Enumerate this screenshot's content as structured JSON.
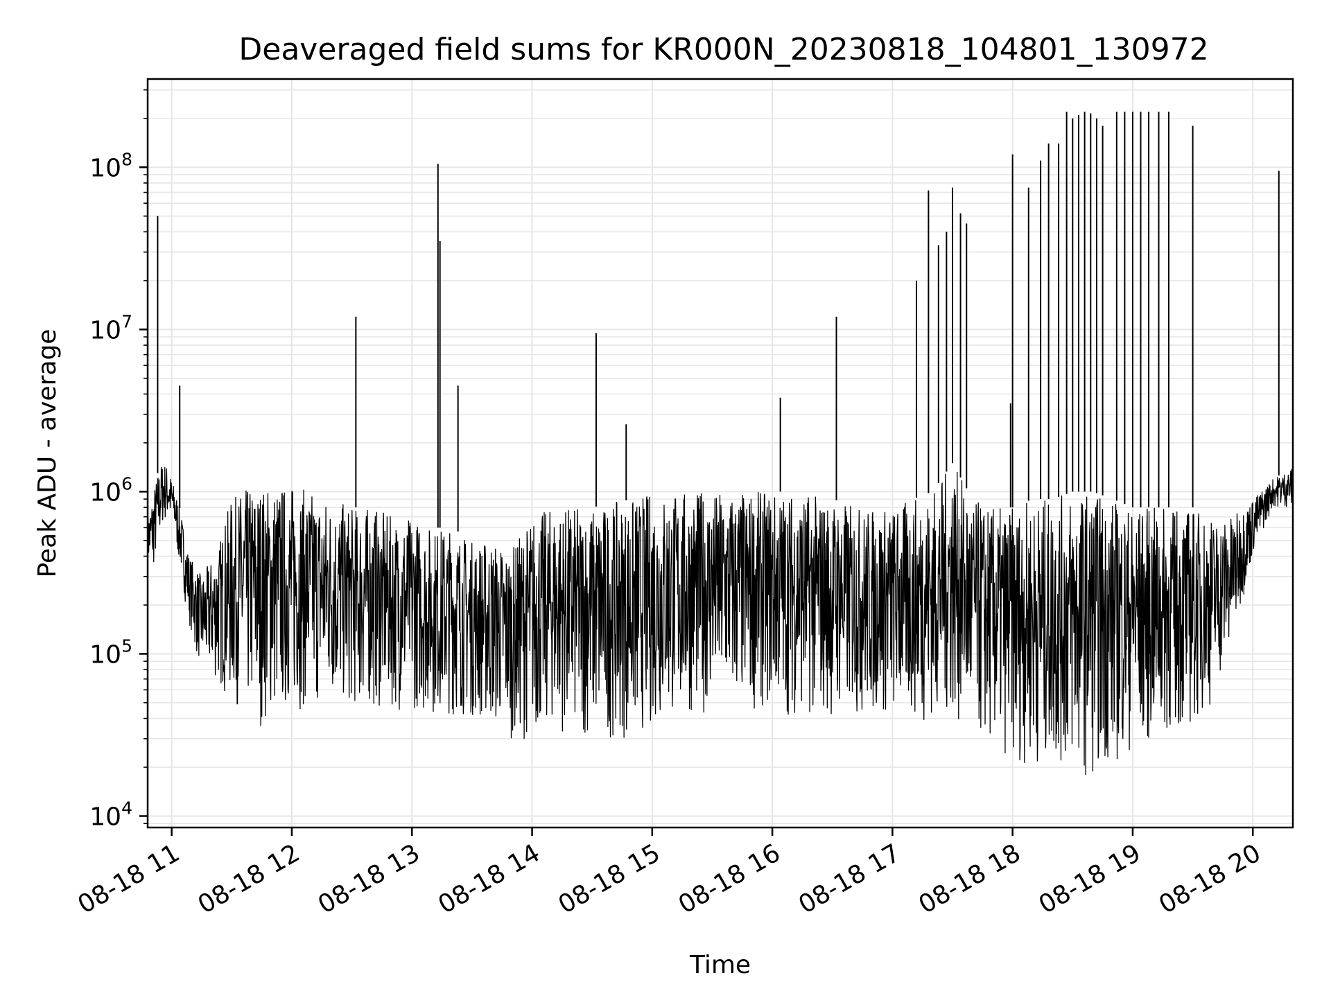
{
  "chart_data": {
    "type": "line",
    "title": "Deaveraged field sums for KR000N_20230818_104801_130972",
    "xlabel": "Time",
    "ylabel": "Peak ADU - average",
    "yscale": "log",
    "ylim": [
      8500,
      350000000
    ],
    "xlim": [
      "2023-08-18 10:48",
      "2023-08-18 20:20"
    ],
    "xtick_labels": [
      "08-18 11",
      "08-18 12",
      "08-18 13",
      "08-18 14",
      "08-18 15",
      "08-18 16",
      "08-18 17",
      "08-18 18",
      "08-18 19",
      "08-18 20"
    ],
    "ytick_labels": [
      {
        "base": "10",
        "exp": "4"
      },
      {
        "base": "10",
        "exp": "5"
      },
      {
        "base": "10",
        "exp": "6"
      },
      {
        "base": "10",
        "exp": "7"
      },
      {
        "base": "10",
        "exp": "8"
      }
    ],
    "grid": true,
    "line_color": "#000000",
    "grid_color": "#e6e6e6",
    "series": [
      {
        "x": [
          "2023-08-18 10:48",
          "2023-08-18 10:50",
          "2023-08-18 10:53",
          "2023-08-18 10:55",
          "2023-08-18 10:57",
          "2023-08-18 10:59",
          "2023-08-18 11:01",
          "2023-08-18 11:03",
          "2023-08-18 11:05",
          "2023-08-18 11:07",
          "2023-08-18 11:09",
          "2023-08-18 11:12",
          "2023-08-18 11:15",
          "2023-08-18 11:18",
          "2023-08-18 11:21",
          "2023-08-18 11:24",
          "2023-08-18 11:27",
          "2023-08-18 11:30",
          "2023-08-18 11:35",
          "2023-08-18 11:40",
          "2023-08-18 11:45",
          "2023-08-18 11:50",
          "2023-08-18 11:55",
          "2023-08-18 12:00",
          "2023-08-18 12:10",
          "2023-08-18 12:20",
          "2023-08-18 12:30",
          "2023-08-18 12:40",
          "2023-08-18 12:50",
          "2023-08-18 13:00",
          "2023-08-18 13:10",
          "2023-08-18 13:20",
          "2023-08-18 13:30",
          "2023-08-18 13:40",
          "2023-08-18 13:50",
          "2023-08-18 14:00",
          "2023-08-18 14:10",
          "2023-08-18 14:20",
          "2023-08-18 14:30",
          "2023-08-18 14:40",
          "2023-08-18 14:50",
          "2023-08-18 15:00",
          "2023-08-18 15:15",
          "2023-08-18 15:30",
          "2023-08-18 15:45",
          "2023-08-18 16:00",
          "2023-08-18 16:15",
          "2023-08-18 16:30",
          "2023-08-18 16:45",
          "2023-08-18 17:00",
          "2023-08-18 17:10",
          "2023-08-18 17:20",
          "2023-08-18 17:30",
          "2023-08-18 17:40",
          "2023-08-18 17:50",
          "2023-08-18 18:00",
          "2023-08-18 18:10",
          "2023-08-18 18:20",
          "2023-08-18 18:30",
          "2023-08-18 18:40",
          "2023-08-18 18:50",
          "2023-08-18 19:00",
          "2023-08-18 19:10",
          "2023-08-18 19:20",
          "2023-08-18 19:30",
          "2023-08-18 19:40",
          "2023-08-18 19:50",
          "2023-08-18 20:00",
          "2023-08-18 20:10",
          "2023-08-18 20:20"
        ],
        "low": [
          350000,
          300000,
          400000,
          600000,
          650000,
          650000,
          600000,
          400000,
          300000,
          200000,
          150000,
          100000,
          80000,
          75000,
          70000,
          60000,
          55000,
          50000,
          45000,
          40000,
          35000,
          40000,
          42000,
          45000,
          45000,
          50000,
          45000,
          45000,
          45000,
          45000,
          42000,
          42000,
          40000,
          35000,
          30000,
          30000,
          35000,
          30000,
          30000,
          30000,
          30000,
          35000,
          40000,
          45000,
          45000,
          45000,
          40000,
          40000,
          40000,
          40000,
          38000,
          38000,
          40000,
          30000,
          25000,
          22000,
          20000,
          20000,
          18000,
          18000,
          20000,
          25000,
          28000,
          30000,
          35000,
          50000,
          120000,
          400000,
          800000,
          800000
        ],
        "high": [
          700000,
          900000,
          1300000,
          1500000,
          1500000,
          1300000,
          1100000,
          900000,
          700000,
          500000,
          400000,
          350000,
          300000,
          350000,
          400000,
          500000,
          700000,
          900000,
          1000000,
          1100000,
          1100000,
          1100000,
          1100000,
          1100000,
          1000000,
          900000,
          800000,
          800000,
          700000,
          700000,
          600000,
          600000,
          500000,
          500000,
          450000,
          700000,
          800000,
          800000,
          800000,
          850000,
          900000,
          1000000,
          1000000,
          1000000,
          1000000,
          1000000,
          1000000,
          900000,
          800000,
          800000,
          900000,
          1000000,
          1500000,
          900000,
          800000,
          800000,
          900000,
          900000,
          1000000,
          1000000,
          900000,
          800000,
          800000,
          800000,
          800000,
          700000,
          700000,
          900000,
          1200000,
          1400000
        ]
      }
    ],
    "spikes": [
      {
        "x": "2023-08-18 10:53",
        "y": 50000000
      },
      {
        "x": "2023-08-18 11:04",
        "y": 4500000
      },
      {
        "x": "2023-08-18 12:32",
        "y": 12000000
      },
      {
        "x": "2023-08-18 13:13",
        "y": 105000000
      },
      {
        "x": "2023-08-18 13:14",
        "y": 35000000
      },
      {
        "x": "2023-08-18 13:23",
        "y": 4500000
      },
      {
        "x": "2023-08-18 14:32",
        "y": 9500000
      },
      {
        "x": "2023-08-18 14:47",
        "y": 2600000
      },
      {
        "x": "2023-08-18 16:04",
        "y": 3800000
      },
      {
        "x": "2023-08-18 16:32",
        "y": 12000000
      },
      {
        "x": "2023-08-18 17:12",
        "y": 20000000
      },
      {
        "x": "2023-08-18 17:18",
        "y": 72000000
      },
      {
        "x": "2023-08-18 17:23",
        "y": 33000000
      },
      {
        "x": "2023-08-18 17:27",
        "y": 40000000
      },
      {
        "x": "2023-08-18 17:30",
        "y": 75000000
      },
      {
        "x": "2023-08-18 17:34",
        "y": 52000000
      },
      {
        "x": "2023-08-18 17:37",
        "y": 45000000
      },
      {
        "x": "2023-08-18 17:59",
        "y": 3500000
      },
      {
        "x": "2023-08-18 18:00",
        "y": 120000000
      },
      {
        "x": "2023-08-18 18:08",
        "y": 75000000
      },
      {
        "x": "2023-08-18 18:14",
        "y": 110000000
      },
      {
        "x": "2023-08-18 18:18",
        "y": 140000000
      },
      {
        "x": "2023-08-18 18:23",
        "y": 140000000
      },
      {
        "x": "2023-08-18 18:27",
        "y": 220000000
      },
      {
        "x": "2023-08-18 18:30",
        "y": 200000000
      },
      {
        "x": "2023-08-18 18:33",
        "y": 210000000
      },
      {
        "x": "2023-08-18 18:36",
        "y": 220000000
      },
      {
        "x": "2023-08-18 18:39",
        "y": 215000000
      },
      {
        "x": "2023-08-18 18:42",
        "y": 200000000
      },
      {
        "x": "2023-08-18 18:45",
        "y": 180000000
      },
      {
        "x": "2023-08-18 18:52",
        "y": 220000000
      },
      {
        "x": "2023-08-18 18:56",
        "y": 220000000
      },
      {
        "x": "2023-08-18 19:00",
        "y": 220000000
      },
      {
        "x": "2023-08-18 19:04",
        "y": 220000000
      },
      {
        "x": "2023-08-18 19:08",
        "y": 220000000
      },
      {
        "x": "2023-08-18 19:13",
        "y": 220000000
      },
      {
        "x": "2023-08-18 19:18",
        "y": 220000000
      },
      {
        "x": "2023-08-18 19:30",
        "y": 180000000
      },
      {
        "x": "2023-08-18 20:13",
        "y": 95000000
      }
    ]
  }
}
